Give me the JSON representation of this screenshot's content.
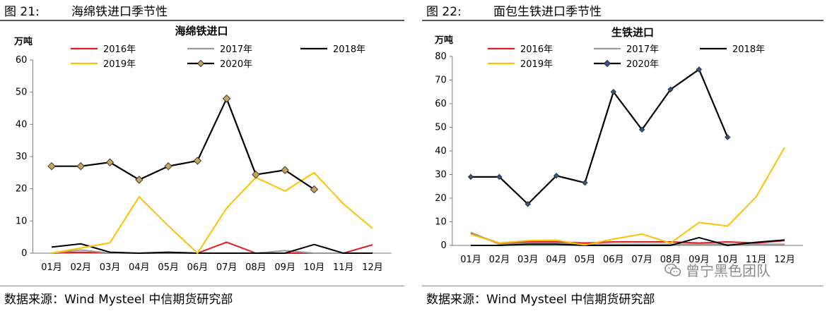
{
  "charts": [
    {
      "header": "图 21:",
      "figure_title": "海绵铁进口季节性",
      "source": "数据来源：Wind Mysteel 中信期货研究部",
      "chart_data": {
        "type": "line",
        "title": "海绵铁进口",
        "unit": "万吨",
        "categories": [
          "01月",
          "02月",
          "03月",
          "04月",
          "05月",
          "06月",
          "07月",
          "08月",
          "09月",
          "10月",
          "11月",
          "12月"
        ],
        "ylim": [
          0,
          60
        ],
        "yticks": [
          0,
          10,
          20,
          30,
          40,
          50,
          60
        ],
        "grid": false,
        "legend_position": "top",
        "series": [
          {
            "name": "2016年",
            "color": "#e41a1c",
            "marker": null,
            "values": [
              0,
              0.3,
              0,
              0,
              0,
              0,
              3.4,
              0,
              0,
              0,
              0,
              2.6
            ]
          },
          {
            "name": "2017年",
            "color": "#999999",
            "marker": null,
            "values": [
              0,
              1,
              0,
              0,
              0.2,
              0,
              0,
              0,
              0.8,
              0,
              0,
              0
            ]
          },
          {
            "name": "2018年",
            "color": "#000000",
            "marker": null,
            "values": [
              1.9,
              2.9,
              0.3,
              0,
              0.3,
              0,
              0,
              0,
              0,
              2.7,
              0,
              0
            ]
          },
          {
            "name": "2019年",
            "color": "#ffc000",
            "marker": null,
            "values": [
              0,
              1.6,
              3.2,
              17.5,
              8.5,
              0,
              14,
              23.5,
              19.3,
              25,
              15.3,
              7.7
            ]
          },
          {
            "name": "2020年",
            "color": "#000000",
            "marker": "diamond",
            "marker_fill": "#c9a45a",
            "values": [
              27,
              27,
              28.2,
              22.8,
              27,
              28.7,
              48,
              24.4,
              25.8,
              19.8,
              null,
              null
            ]
          }
        ]
      }
    },
    {
      "header": "图 22:",
      "figure_title": "面包生铁进口季节性",
      "source": "数据来源：Wind Mysteel 中信期货研究部",
      "chart_data": {
        "type": "line",
        "title": "生铁进口",
        "unit": "万吨",
        "categories": [
          "01月",
          "02月",
          "03月",
          "04月",
          "05月",
          "06月",
          "07月",
          "08月",
          "09月",
          "10月",
          "11月",
          "12月"
        ],
        "ylim": [
          0,
          80
        ],
        "yticks": [
          0,
          10,
          20,
          30,
          40,
          50,
          60,
          70,
          80
        ],
        "grid": false,
        "legend_position": "top",
        "series": [
          {
            "name": "2016年",
            "color": "#e41a1c",
            "marker": null,
            "values": [
              5,
              1,
              1.5,
              1.5,
              1,
              1.5,
              1.5,
              1.5,
              1,
              1.5,
              1,
              2
            ]
          },
          {
            "name": "2017年",
            "color": "#999999",
            "marker": null,
            "values": [
              5.5,
              0.5,
              1,
              1,
              0.5,
              0.5,
              0.5,
              0.5,
              0.5,
              0.5,
              0.5,
              0.5
            ]
          },
          {
            "name": "2018年",
            "color": "#000000",
            "marker": null,
            "values": [
              0,
              0,
              0.5,
              0.5,
              0,
              0,
              0,
              0,
              3.3,
              0,
              1.3,
              2.3
            ]
          },
          {
            "name": "2019年",
            "color": "#ffc000",
            "marker": null,
            "values": [
              4.7,
              1,
              2,
              2.2,
              0.2,
              2.7,
              4.8,
              1,
              9.7,
              8.2,
              20.5,
              41.5
            ]
          },
          {
            "name": "2020年",
            "color": "#000000",
            "marker": "diamond",
            "marker_fill": "#2f5597",
            "values": [
              29,
              29,
              17.5,
              29.5,
              26.5,
              65,
              49,
              66,
              74.5,
              45.8,
              null,
              null
            ]
          }
        ]
      }
    }
  ],
  "watermark": {
    "text": "曾宁黑色团队",
    "icon": "wechat-icon"
  }
}
